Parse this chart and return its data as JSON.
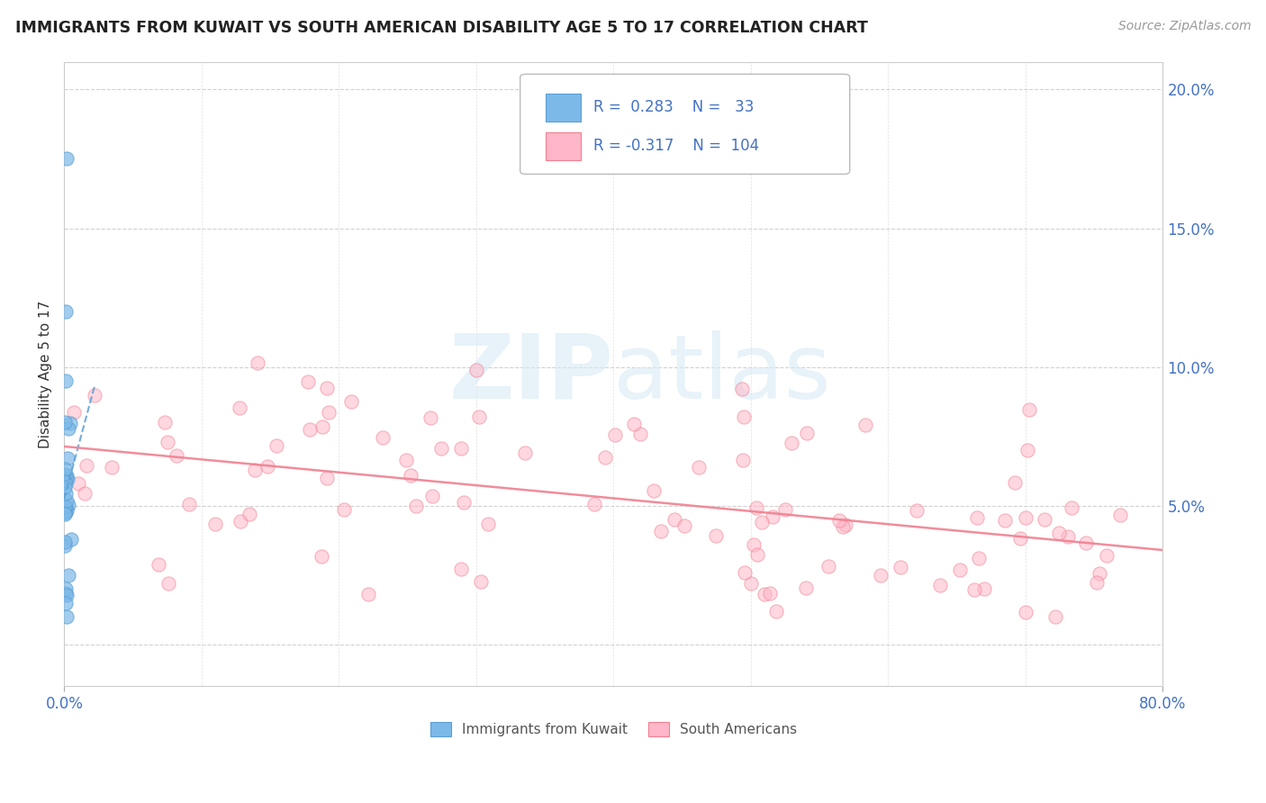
{
  "title": "IMMIGRANTS FROM KUWAIT VS SOUTH AMERICAN DISABILITY AGE 5 TO 17 CORRELATION CHART",
  "source": "Source: ZipAtlas.com",
  "ylabel": "Disability Age 5 to 17",
  "watermark_part1": "ZIP",
  "watermark_part2": "atlas",
  "legend_kuwait": {
    "label": "Immigrants from Kuwait",
    "R": 0.283,
    "N": 33,
    "color": "#7cb9e8",
    "edge": "#5a9fd4"
  },
  "legend_south": {
    "label": "South Americans",
    "R": -0.317,
    "N": 104,
    "color": "#ffb6c8",
    "edge": "#f08090"
  },
  "xlim": [
    0,
    0.8
  ],
  "ylim": [
    -0.015,
    0.21
  ],
  "y_ticks": [
    0.0,
    0.05,
    0.1,
    0.15,
    0.2
  ],
  "y_tick_labels": [
    "",
    "5.0%",
    "10.0%",
    "15.0%",
    "20.0%"
  ],
  "x_ticks": [
    0.0,
    0.8
  ],
  "x_tick_labels": [
    "0.0%",
    "80.0%"
  ],
  "grid_color": "#cccccc",
  "background_color": "#ffffff",
  "scatter_size": 120,
  "scatter_alpha": 0.55,
  "trend_kuwait_color": "#5a9fd4",
  "trend_south_color": "#f08090"
}
